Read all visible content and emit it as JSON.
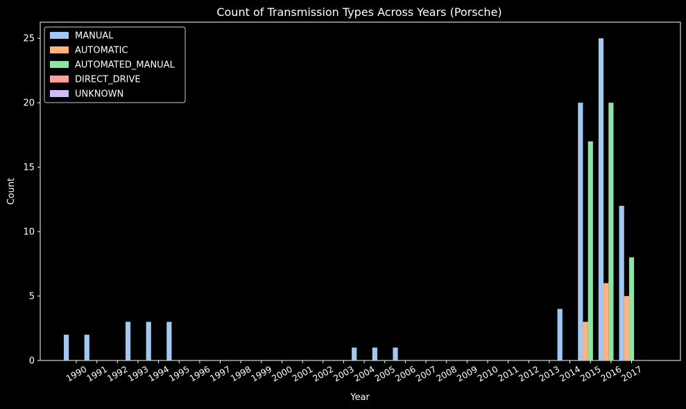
{
  "chart_data": {
    "type": "bar",
    "title": "Count of Transmission Types Across Years (Porsche)",
    "xlabel": "Year",
    "ylabel": "Count",
    "ylim": [
      0,
      26.25
    ],
    "yticks": [
      0,
      5,
      10,
      15,
      20,
      25
    ],
    "legend_position": "top-left",
    "grid": false,
    "categories": [
      "1990",
      "1991",
      "1992",
      "1993",
      "1994",
      "1995",
      "1996",
      "1997",
      "1998",
      "1999",
      "2000",
      "2001",
      "2002",
      "2003",
      "2004",
      "2005",
      "2006",
      "2007",
      "2008",
      "2009",
      "2010",
      "2011",
      "2012",
      "2013",
      "2014",
      "2015",
      "2016",
      "2017"
    ],
    "series": [
      {
        "name": "MANUAL",
        "color": "#a1c9f4",
        "values": [
          2,
          2,
          0,
          3,
          3,
          3,
          0,
          0,
          0,
          0,
          0,
          0,
          0,
          0,
          1,
          1,
          1,
          0,
          0,
          0,
          0,
          0,
          0,
          0,
          4,
          20,
          25,
          12
        ]
      },
      {
        "name": "AUTOMATIC",
        "color": "#ffb482",
        "values": [
          0,
          0,
          0,
          0,
          0,
          0,
          0,
          0,
          0,
          0,
          0,
          0,
          0,
          0,
          0,
          0,
          0,
          0,
          0,
          0,
          0,
          0,
          0,
          0,
          0,
          3,
          6,
          5
        ]
      },
      {
        "name": "AUTOMATED_MANUAL",
        "color": "#8de5a1",
        "values": [
          0,
          0,
          0,
          0,
          0,
          0,
          0,
          0,
          0,
          0,
          0,
          0,
          0,
          0,
          0,
          0,
          0,
          0,
          0,
          0,
          0,
          0,
          0,
          0,
          0,
          17,
          20,
          8
        ]
      },
      {
        "name": "DIRECT_DRIVE",
        "color": "#ff9f9b",
        "values": [
          0,
          0,
          0,
          0,
          0,
          0,
          0,
          0,
          0,
          0,
          0,
          0,
          0,
          0,
          0,
          0,
          0,
          0,
          0,
          0,
          0,
          0,
          0,
          0,
          0,
          0,
          0,
          0
        ]
      },
      {
        "name": "UNKNOWN",
        "color": "#d0bbff",
        "values": [
          0,
          0,
          0,
          0,
          0,
          0,
          0,
          0,
          0,
          0,
          0,
          0,
          0,
          0,
          0,
          0,
          0,
          0,
          0,
          0,
          0,
          0,
          0,
          0,
          0,
          0,
          0,
          0
        ]
      }
    ]
  }
}
